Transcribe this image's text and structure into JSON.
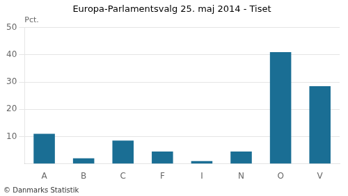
{
  "chart_data": {
    "type": "bar",
    "title": "Europa-Parlamentsvalg 25. maj 2014 - Tiset",
    "categories": [
      "A",
      "B",
      "C",
      "F",
      "I",
      "N",
      "O",
      "V"
    ],
    "values": [
      11.0,
      2.0,
      8.5,
      4.5,
      1.0,
      4.5,
      41.0,
      28.5
    ],
    "color": "#1a6e94",
    "ylabel": "Pct.",
    "annotations": [
      "© Danmarks Statistik"
    ],
    "ylim": [
      0,
      50
    ],
    "yticks": [
      10,
      20,
      30,
      40,
      50
    ],
    "grid": true
  }
}
